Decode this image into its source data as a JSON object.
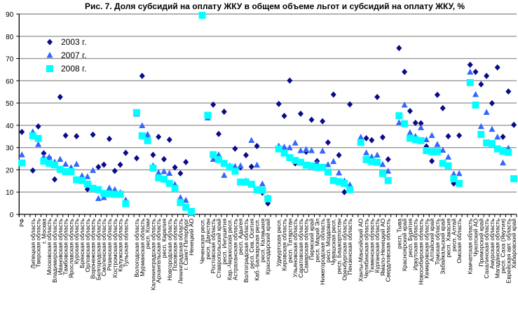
{
  "chart_data": {
    "type": "scatter",
    "title": "Рис. 7. Доля субсидий на оплату ЖКУ в общем объеме льгот и субсидий на оплату ЖКУ, %",
    "xlabel": "",
    "ylabel": "",
    "ylim": [
      0,
      90
    ],
    "yticks": [
      0,
      10,
      20,
      30,
      40,
      50,
      60,
      70,
      80,
      90
    ],
    "grid": true,
    "legend_position": "top-left",
    "categories": [
      "РФ",
      "",
      "Липецкая область",
      "Тверская область",
      "г. Москва",
      "Московская область",
      "Владимирская область",
      "Ивановская область",
      "Тамбовская область",
      "Ярославская область",
      "Курская область",
      "Брянская область",
      "Орловская область",
      "Воронежская область",
      "Белгородская область",
      "Смоленская область",
      "Рязанская область",
      "Костромская область",
      "Калужская область",
      "Тульская область",
      "",
      "Вологодская область",
      "Мурманская область",
      "респ. Коми",
      "Калининградская область",
      "Архангельская область",
      "респ. Карелия",
      "Новгородская область",
      "Псковская область",
      "Ленинградская область",
      "г. Санкт-Петербург",
      "Ненецкий АО",
      "",
      "Чеченская респ.",
      "респ. Дагестан",
      "Ростовская область",
      "Ставропольский край",
      "респ. Ингушетия",
      "Кар.-Черкесская респ.",
      "Астраханская область",
      "респ. Адыгея",
      "Волгоградская область",
      "респ. Сев. Осетия",
      "Каб.-Балкарская респ.",
      "респ. Калмыкия",
      "Краснодарский край",
      "",
      "Удмуртская респ.",
      "Кировская область",
      "респ. Татарстан",
      "Ульяновская область",
      "Саратовская область",
      "Самарская область",
      "Пермский край",
      "респ. Марий Эл",
      "Нижегородская область",
      "респ. Мордовия",
      "Чувашская респ.",
      "респ. Башкортостан",
      "Оренбургская область",
      "Пензенская область",
      "",
      "Ханты-Мансийский АО",
      "Челябинская область",
      "Тюменская область",
      "Курганская область",
      "Ямало-Ненецкий АО",
      "Свердловская область",
      "",
      "респ. Тыва",
      "Красноярский край",
      "респ. Бурятия",
      "Иркутская область",
      "Новосибирская область",
      "Кемеровская область",
      "Алтайский край",
      "Томская область",
      "Забайкальский край",
      "респ. Хакасия",
      "респ. Алтай",
      "Омская область",
      "",
      "Камчатская область",
      "Чукотский АО",
      "Приморский край",
      "Сахалинская область",
      "Амурская область",
      "Магаданская область",
      "респ. Саха (Якутия)",
      "Еврейская авт. область",
      "Хабаровский край"
    ],
    "series": [
      {
        "name": "2003 г.",
        "marker": "diamond",
        "color": "#0a0a8a",
        "values": [
          37.0,
          null,
          19.7,
          39.5,
          27.4,
          25.5,
          15.7,
          52.7,
          35.4,
          19.5,
          35.1,
          16.5,
          11.3,
          35.8,
          21.3,
          22.3,
          33.9,
          19.5,
          22.3,
          27.6,
          null,
          25.2,
          62.2,
          34.0,
          26.7,
          34.8,
          24.8,
          33.5,
          21.1,
          18.4,
          23.5,
          null,
          null,
          null,
          null,
          49.3,
          36.1,
          46.1,
          21.5,
          29.5,
          21.1,
          26.6,
          21.4,
          30.7,
          9.7,
          4.9,
          null,
          49.6,
          44.2,
          60.1,
          22.9,
          45.2,
          28.1,
          42.5,
          23.9,
          41.8,
          32.3,
          53.8,
          26.6,
          10.0,
          49.4,
          null,
          33.0,
          34.2,
          33.3,
          52.7,
          34.6,
          24.7,
          null,
          74.7,
          64.0,
          46.4,
          41.1,
          40.9,
          30.5,
          23.9,
          53.7,
          47.7,
          35.1,
          13.9,
          35.4,
          null,
          67.2,
          64.0,
          58.4,
          62.2,
          49.9,
          66.0,
          34.8,
          55.2,
          40.2
        ]
      },
      {
        "name": "2007 г.",
        "marker": "triangle",
        "color": "#3366ff",
        "values": [
          26.7,
          null,
          37.0,
          31.4,
          25.7,
          25.7,
          23.5,
          24.7,
          22.5,
          21.0,
          22.5,
          17.3,
          16.9,
          19.7,
          7.1,
          7.5,
          11.8,
          11.1,
          9.7,
          6.4,
          null,
          45.0,
          39.8,
          35.9,
          21.8,
          18.7,
          19.2,
          18.4,
          13.4,
          7.5,
          6.3,
          0.5,
          null,
          null,
          43.3,
          24.7,
          26.7,
          17.5,
          21.8,
          21.5,
          21.8,
          15.0,
          33.2,
          22.1,
          13.7,
          7.5,
          null,
          30.7,
          30.2,
          29.9,
          32.0,
          28.6,
          29.1,
          28.6,
          22.8,
          28.4,
          22.3,
          23.7,
          18.6,
          15.0,
          13.2,
          null,
          34.6,
          27.6,
          25.8,
          26.6,
          22.4,
          19.4,
          null,
          41.2,
          49.1,
          36.7,
          35.0,
          38.9,
          33.5,
          35.4,
          31.4,
          28.8,
          25.7,
          18.1,
          18.3,
          null,
          63.9,
          53.8,
          39.4,
          45.8,
          38.2,
          34.7,
          23.1,
          29.7,
          16.0
        ]
      },
      {
        "name": "2008 г.",
        "marker": "square",
        "color": "#00ffff",
        "values": [
          23.1,
          null,
          35.3,
          34.1,
          23.9,
          22.9,
          22.2,
          20.2,
          19.2,
          19.2,
          15.5,
          15.2,
          13.6,
          11.7,
          11.1,
          9.4,
          9.2,
          9.0,
          9.0,
          4.8,
          null,
          45.7,
          35.3,
          33.1,
          20.8,
          16.4,
          15.8,
          13.9,
          11.6,
          5.3,
          3.2,
          1.3,
          null,
          89.4,
          44.5,
          26.8,
          24.6,
          22.9,
          21.2,
          19.4,
          14.5,
          14.5,
          13.5,
          11.0,
          10.8,
          7.0,
          null,
          29.4,
          27.5,
          25.5,
          24.2,
          23.4,
          22.1,
          21.8,
          21.1,
          21.1,
          19.0,
          15.2,
          14.7,
          13.9,
          11.1,
          null,
          32.3,
          24.6,
          23.7,
          23.4,
          18.3,
          15.2,
          null,
          44.3,
          40.7,
          34.2,
          33.5,
          33.1,
          28.6,
          28.1,
          28.1,
          22.9,
          21.8,
          16.0,
          13.9,
          null,
          59.2,
          49.1,
          35.9,
          32.1,
          31.8,
          29.4,
          28.3,
          27.8,
          16.0
        ]
      }
    ]
  }
}
